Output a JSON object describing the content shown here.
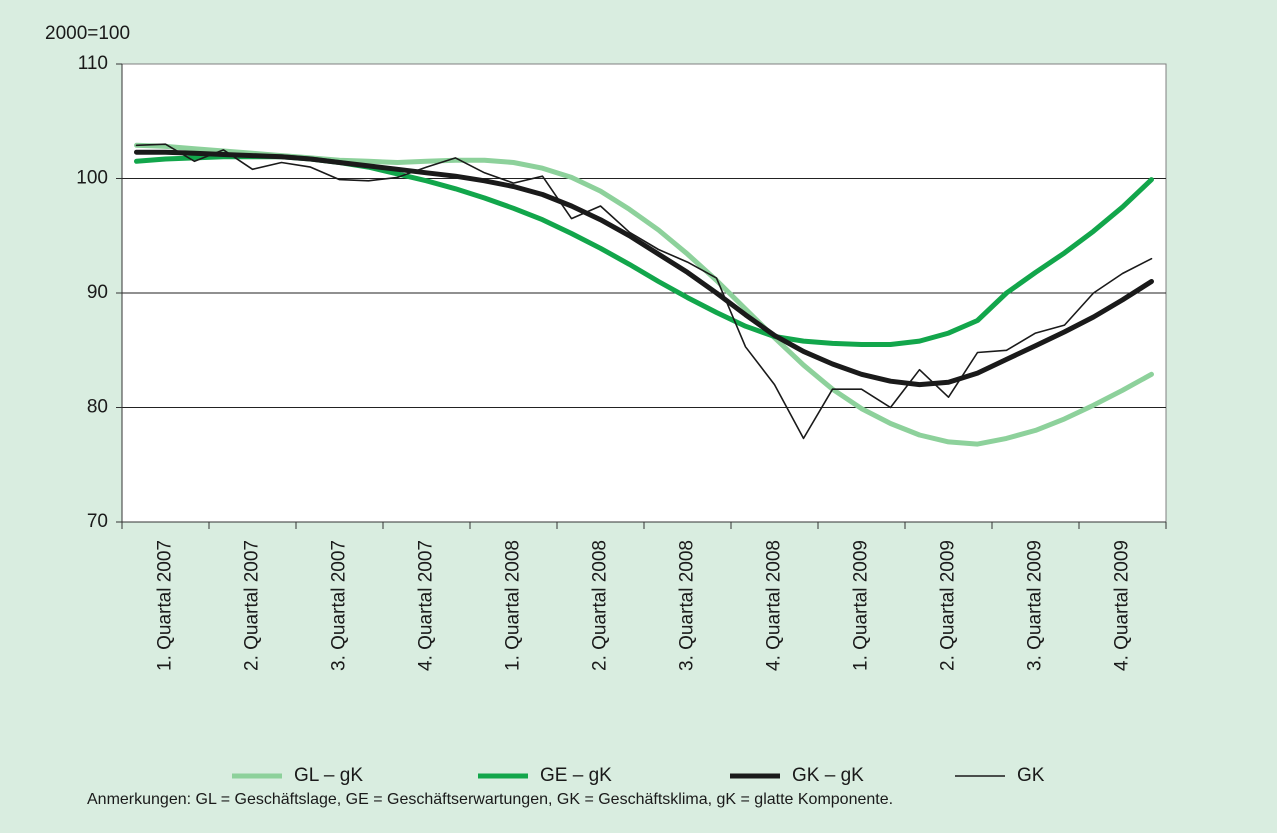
{
  "chart_data": {
    "type": "line",
    "y_unit": "2000=100",
    "note": "Anmerkungen: GL = Geschäftslage, GE = Geschäftserwartungen, GK = Geschäftsklima, gK = glatte Komponente.",
    "categories": [
      null,
      "1. Quartal 2007",
      null,
      null,
      "2. Quartal 2007",
      null,
      null,
      "3. Quartal 2007",
      null,
      null,
      "4. Quartal 2007",
      null,
      null,
      "1. Quartal 2008",
      null,
      null,
      "2. Quartal 2008",
      null,
      null,
      "3. Quartal 2008",
      null,
      null,
      "4. Quartal 2008",
      null,
      null,
      "1. Quartal 2009",
      null,
      null,
      "2. Quartal 2009",
      null,
      null,
      "3. Quartal 2009",
      null,
      null,
      "4. Quartal 2009",
      null
    ],
    "ylim": [
      70,
      110
    ],
    "yticks": [
      70,
      80,
      90,
      100,
      110
    ],
    "grid": true,
    "legend": "bottom",
    "series": [
      {
        "name": "GL – gK",
        "color": "#8dd19b",
        "width": 5,
        "values": [
          102.9,
          102.8,
          102.6,
          102.4,
          102.2,
          102.0,
          101.8,
          101.6,
          101.5,
          101.4,
          101.5,
          101.6,
          101.6,
          101.4,
          100.9,
          100.1,
          98.9,
          97.3,
          95.5,
          93.4,
          91.1,
          88.6,
          86.1,
          83.7,
          81.6,
          79.9,
          78.6,
          77.6,
          77.0,
          76.8,
          77.3,
          78.0,
          79.0,
          80.2,
          81.5,
          82.9
        ]
      },
      {
        "name": "GE – gK",
        "color": "#12a64b",
        "width": 5,
        "values": [
          101.5,
          101.7,
          101.8,
          101.9,
          101.9,
          101.9,
          101.7,
          101.4,
          101.0,
          100.4,
          99.8,
          99.1,
          98.3,
          97.4,
          96.4,
          95.2,
          93.9,
          92.5,
          91.0,
          89.6,
          88.3,
          87.1,
          86.2,
          85.8,
          85.6,
          85.5,
          85.5,
          85.8,
          86.5,
          87.6,
          90.0,
          91.8,
          93.5,
          95.4,
          97.5,
          99.9
        ]
      },
      {
        "name": "GK – gK",
        "color": "#1a1a1a",
        "width": 5,
        "values": [
          102.3,
          102.3,
          102.2,
          102.1,
          102.0,
          101.9,
          101.7,
          101.4,
          101.1,
          100.8,
          100.5,
          100.2,
          99.8,
          99.3,
          98.6,
          97.6,
          96.4,
          95.0,
          93.4,
          91.8,
          90.0,
          88.1,
          86.3,
          84.9,
          83.8,
          82.9,
          82.3,
          82.0,
          82.2,
          83.0,
          84.2,
          85.4,
          86.6,
          87.9,
          89.4,
          91.0
        ]
      },
      {
        "name": "GK",
        "color": "#1a1a1a",
        "width": 1.6,
        "values": [
          102.9,
          103.0,
          101.5,
          102.5,
          100.8,
          101.4,
          101.0,
          99.9,
          99.8,
          100.1,
          101.0,
          101.8,
          100.5,
          99.6,
          100.2,
          96.5,
          97.6,
          95.3,
          93.8,
          92.7,
          91.3,
          85.3,
          82.0,
          77.3,
          81.6,
          81.6,
          80.0,
          83.3,
          80.9,
          84.8,
          85.0,
          86.5,
          87.2,
          90.0,
          91.7,
          93.0
        ]
      }
    ]
  }
}
